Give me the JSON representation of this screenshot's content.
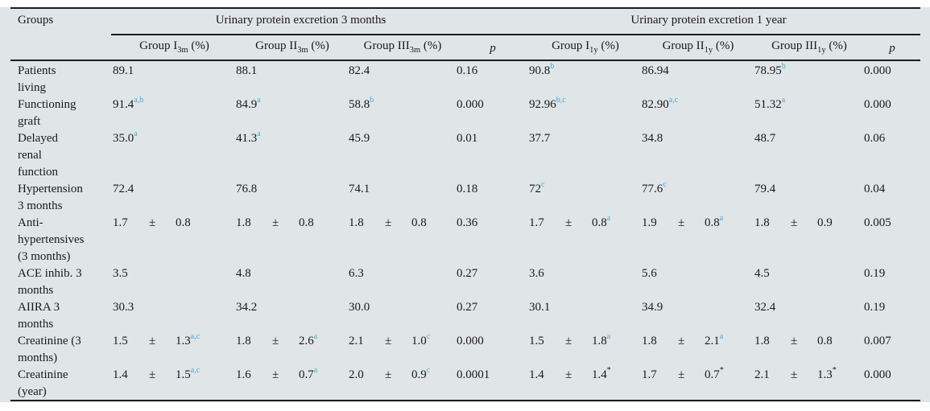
{
  "colors": {
    "table_background": "#e0e5e8",
    "rule": "#1c1c1c",
    "text": "#1a1a1a",
    "superscript_accent": "#4aa5d8"
  },
  "table": {
    "groups_header": "Groups",
    "pm_symbol": "±",
    "col_groups": [
      {
        "label": "Urinary protein excretion 3 months"
      },
      {
        "label": "Urinary protein excretion 1 year"
      }
    ],
    "sub_headers": [
      {
        "type": "group",
        "base": "Group I",
        "sub": "3m",
        "suffix": " (%)"
      },
      {
        "type": "group",
        "base": "Group II",
        "sub": "3m",
        "suffix": " (%)"
      },
      {
        "type": "group",
        "base": "Group III",
        "sub": "3m",
        "suffix": " (%)"
      },
      {
        "type": "p",
        "label": "p"
      },
      {
        "type": "group",
        "base": "Group I",
        "sub": "1y",
        "suffix": " (%)"
      },
      {
        "type": "group",
        "base": "Group II",
        "sub": "1y",
        "suffix": " (%)"
      },
      {
        "type": "group",
        "base": "Group III",
        "sub": "1y",
        "suffix": " (%)"
      },
      {
        "type": "p",
        "label": "p"
      }
    ],
    "rows": [
      {
        "label_lines": [
          "Patients",
          "living"
        ],
        "cells": [
          {
            "v": "89.1"
          },
          {
            "v": "88.1"
          },
          {
            "v": "82.4"
          },
          {
            "v": "0.16"
          },
          {
            "v": "90.8",
            "sup": "b"
          },
          {
            "v": "86.94"
          },
          {
            "v": "78.95",
            "sup": "b"
          },
          {
            "v": "0.000"
          }
        ]
      },
      {
        "label_lines": [
          "Functioning",
          "graft"
        ],
        "cells": [
          {
            "v": "91.4",
            "sup": "a,b"
          },
          {
            "v": "84.9",
            "sup": "a"
          },
          {
            "v": "58.8",
            "sup": "b"
          },
          {
            "v": "0.000"
          },
          {
            "v": "92.96",
            "sup": "b,c"
          },
          {
            "v": "82.90",
            "sup": "a,c"
          },
          {
            "v": "51.32",
            "sup": "a"
          },
          {
            "v": "0.000"
          }
        ]
      },
      {
        "label_lines": [
          "Delayed",
          "renal",
          "function"
        ],
        "cells": [
          {
            "v": "35.0",
            "sup": "a"
          },
          {
            "v": "41.3",
            "sup": "a"
          },
          {
            "v": "45.9"
          },
          {
            "v": "0.01"
          },
          {
            "v": "37.7"
          },
          {
            "v": "34.8"
          },
          {
            "v": "48.7"
          },
          {
            "v": "0.06"
          }
        ]
      },
      {
        "label_lines": [
          "Hypertension",
          "3 months"
        ],
        "cells": [
          {
            "v": "72.4"
          },
          {
            "v": "76.8"
          },
          {
            "v": "74.1"
          },
          {
            "v": "0.18"
          },
          {
            "v": "72",
            "sup": "c"
          },
          {
            "v": "77.6",
            "sup": "c"
          },
          {
            "v": "79.4"
          },
          {
            "v": "0.04"
          }
        ]
      },
      {
        "label_lines": [
          "Anti-",
          "hypertensives",
          "(3 months)"
        ],
        "cells": [
          {
            "m": "1.7",
            "sd": "0.8"
          },
          {
            "m": "1.8",
            "sd": "0.8"
          },
          {
            "m": "1.8",
            "sd": "0.8"
          },
          {
            "v": "0.36"
          },
          {
            "m": "1.7",
            "sd": "0.8",
            "sup": "a"
          },
          {
            "m": "1.9",
            "sd": "0.8",
            "sup": "a"
          },
          {
            "m": "1.8",
            "sd": "0.9"
          },
          {
            "v": "0.005"
          }
        ]
      },
      {
        "label_lines": [
          "ACE inhib. 3",
          "months"
        ],
        "cells": [
          {
            "v": "3.5"
          },
          {
            "v": "4.8"
          },
          {
            "v": "6.3"
          },
          {
            "v": "0.27"
          },
          {
            "v": "3.6"
          },
          {
            "v": "5.6"
          },
          {
            "v": "4.5"
          },
          {
            "v": "0.19"
          }
        ]
      },
      {
        "label_lines": [
          "AIIRA 3",
          "months"
        ],
        "cells": [
          {
            "v": "30.3"
          },
          {
            "v": "34.2"
          },
          {
            "v": "30.0"
          },
          {
            "v": "0.27"
          },
          {
            "v": "30.1"
          },
          {
            "v": "34.9"
          },
          {
            "v": "32.4"
          },
          {
            "v": "0.19"
          }
        ]
      },
      {
        "label_lines": [
          "Creatinine (3",
          "months)"
        ],
        "cells": [
          {
            "m": "1.5",
            "sd": "1.3",
            "sup": "a,c"
          },
          {
            "m": "1.8",
            "sd": "2.6",
            "sup": "a"
          },
          {
            "m": "2.1",
            "sd": "1.0",
            "sup": "c"
          },
          {
            "v": "0.000"
          },
          {
            "m": "1.5",
            "sd": "1.8",
            "sup": "a"
          },
          {
            "m": "1.8",
            "sd": "2.1",
            "sup": "a"
          },
          {
            "m": "1.8",
            "sd": "0.8"
          },
          {
            "v": "0.007"
          }
        ]
      },
      {
        "label_lines": [
          "Creatinine",
          "(year)"
        ],
        "cells": [
          {
            "m": "1.4",
            "sd": "1.5",
            "sup": "a,c"
          },
          {
            "m": "1.6",
            "sd": "0.7",
            "sup": "a"
          },
          {
            "m": "2.0",
            "sd": "0.9",
            "sup": "c"
          },
          {
            "v": "0.0001"
          },
          {
            "m": "1.4",
            "sd": "1.4",
            "sup": "*",
            "sup_color": "black"
          },
          {
            "m": "1.7",
            "sd": "0.7",
            "sup": "*",
            "sup_color": "black"
          },
          {
            "m": "2.1",
            "sd": "1.3",
            "sup": "*",
            "sup_color": "black"
          },
          {
            "v": "0.000"
          }
        ]
      }
    ]
  }
}
